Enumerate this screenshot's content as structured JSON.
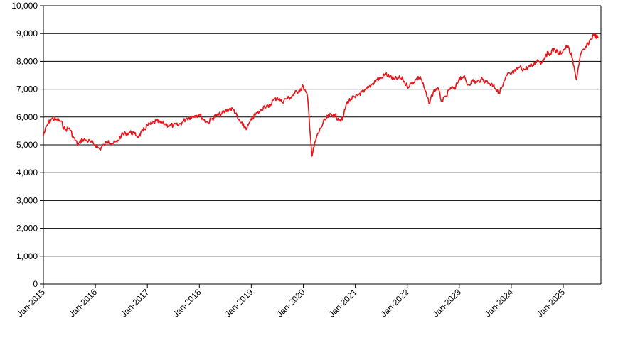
{
  "chart_data": {
    "type": "line",
    "title": "",
    "xlabel": "",
    "ylabel": "",
    "ylim": [
      0,
      10000
    ],
    "xlim": [
      "2015-01",
      "2025-09"
    ],
    "grid": "horizontal",
    "y_ticks": [
      0,
      1000,
      2000,
      3000,
      4000,
      5000,
      6000,
      7000,
      8000,
      9000,
      10000
    ],
    "y_tick_labels": [
      "0",
      "1,000",
      "2,000",
      "3,000",
      "4,000",
      "5,000",
      "6,000",
      "7,000",
      "8,000",
      "9,000",
      "10,000"
    ],
    "x_ticks": [
      "2015-01",
      "2016-01",
      "2017-01",
      "2018-01",
      "2019-01",
      "2020-01",
      "2021-01",
      "2022-01",
      "2023-01",
      "2024-01",
      "2025-01"
    ],
    "x_tick_labels": [
      "Jan-2015",
      "Jan-2016",
      "Jan-2017",
      "Jan-2018",
      "Jan-2019",
      "Jan-2020",
      "Jan-2021",
      "Jan-2022",
      "Jan-2023",
      "Jan-2024",
      "Jan-2025"
    ],
    "series": [
      {
        "color": "#e8161b",
        "points": [
          [
            "2015-01",
            5350
          ],
          [
            "2015-02",
            5750
          ],
          [
            "2015-03",
            5950
          ],
          [
            "2015-04",
            5900
          ],
          [
            "2015-05",
            5850
          ],
          [
            "2015-06",
            5550
          ],
          [
            "2015-07",
            5600
          ],
          [
            "2015-08",
            5250
          ],
          [
            "2015-09",
            5000
          ],
          [
            "2015-10",
            5200
          ],
          [
            "2015-11",
            5150
          ],
          [
            "2015-12",
            5100
          ],
          [
            "2016-01",
            5000
          ],
          [
            "2016-02",
            4850
          ],
          [
            "2016-03",
            5000
          ],
          [
            "2016-04",
            5150
          ],
          [
            "2016-05",
            5050
          ],
          [
            "2016-06",
            5100
          ],
          [
            "2016-07",
            5350
          ],
          [
            "2016-08",
            5400
          ],
          [
            "2016-09",
            5450
          ],
          [
            "2016-10",
            5400
          ],
          [
            "2016-11",
            5300
          ],
          [
            "2016-12",
            5500
          ],
          [
            "2017-01",
            5700
          ],
          [
            "2017-02",
            5750
          ],
          [
            "2017-03",
            5850
          ],
          [
            "2017-04",
            5800
          ],
          [
            "2017-05",
            5750
          ],
          [
            "2017-06",
            5700
          ],
          [
            "2017-07",
            5700
          ],
          [
            "2017-08",
            5700
          ],
          [
            "2017-09",
            5800
          ],
          [
            "2017-10",
            5950
          ],
          [
            "2017-11",
            6000
          ],
          [
            "2017-12",
            6050
          ],
          [
            "2018-01",
            6100
          ],
          [
            "2018-02",
            5900
          ],
          [
            "2018-03",
            5800
          ],
          [
            "2018-04",
            5950
          ],
          [
            "2018-05",
            6050
          ],
          [
            "2018-06",
            6100
          ],
          [
            "2018-07",
            6200
          ],
          [
            "2018-08",
            6300
          ],
          [
            "2018-09",
            6250
          ],
          [
            "2018-10",
            5900
          ],
          [
            "2018-11",
            5700
          ],
          [
            "2018-12",
            5600
          ],
          [
            "2019-01",
            5900
          ],
          [
            "2019-02",
            6100
          ],
          [
            "2019-03",
            6200
          ],
          [
            "2019-04",
            6400
          ],
          [
            "2019-05",
            6350
          ],
          [
            "2019-06",
            6600
          ],
          [
            "2019-07",
            6700
          ],
          [
            "2019-08",
            6550
          ],
          [
            "2019-09",
            6650
          ],
          [
            "2019-10",
            6700
          ],
          [
            "2019-11",
            6850
          ],
          [
            "2019-12",
            6950
          ],
          [
            "2020-01",
            7100
          ],
          [
            "2020-02",
            6700
          ],
          [
            "2020-03",
            4600
          ],
          [
            "2020-04",
            5250
          ],
          [
            "2020-05",
            5600
          ],
          [
            "2020-06",
            5900
          ],
          [
            "2020-07",
            6050
          ],
          [
            "2020-08",
            6100
          ],
          [
            "2020-09",
            5950
          ],
          [
            "2020-10",
            5900
          ],
          [
            "2020-11",
            6500
          ],
          [
            "2020-12",
            6650
          ],
          [
            "2021-01",
            6700
          ],
          [
            "2021-02",
            6850
          ],
          [
            "2021-03",
            6900
          ],
          [
            "2021-04",
            7050
          ],
          [
            "2021-05",
            7200
          ],
          [
            "2021-06",
            7350
          ],
          [
            "2021-07",
            7400
          ],
          [
            "2021-08",
            7550
          ],
          [
            "2021-09",
            7450
          ],
          [
            "2021-10",
            7350
          ],
          [
            "2021-11",
            7400
          ],
          [
            "2021-12",
            7350
          ],
          [
            "2022-01",
            7100
          ],
          [
            "2022-02",
            7200
          ],
          [
            "2022-03",
            7350
          ],
          [
            "2022-04",
            7450
          ],
          [
            "2022-05",
            7000
          ],
          [
            "2022-06",
            6500
          ],
          [
            "2022-07",
            6900
          ],
          [
            "2022-08",
            7050
          ],
          [
            "2022-09",
            6550
          ],
          [
            "2022-10",
            6750
          ],
          [
            "2022-11",
            7050
          ],
          [
            "2022-12",
            7000
          ],
          [
            "2023-01",
            7400
          ],
          [
            "2023-02",
            7450
          ],
          [
            "2023-03",
            7150
          ],
          [
            "2023-04",
            7300
          ],
          [
            "2023-05",
            7250
          ],
          [
            "2023-06",
            7350
          ],
          [
            "2023-07",
            7300
          ],
          [
            "2023-08",
            7200
          ],
          [
            "2023-09",
            7150
          ],
          [
            "2023-10",
            6850
          ],
          [
            "2023-11",
            7100
          ],
          [
            "2023-12",
            7500
          ],
          [
            "2024-01",
            7550
          ],
          [
            "2024-02",
            7650
          ],
          [
            "2024-03",
            7800
          ],
          [
            "2024-04",
            7700
          ],
          [
            "2024-05",
            7800
          ],
          [
            "2024-06",
            7850
          ],
          [
            "2024-07",
            8050
          ],
          [
            "2024-08",
            7950
          ],
          [
            "2024-09",
            8250
          ],
          [
            "2024-10",
            8300
          ],
          [
            "2024-11",
            8450
          ],
          [
            "2024-12",
            8250
          ],
          [
            "2025-01",
            8400
          ],
          [
            "2025-02",
            8550
          ],
          [
            "2025-03",
            8150
          ],
          [
            "2025-04",
            7350
          ],
          [
            "2025-05",
            8250
          ],
          [
            "2025-06",
            8450
          ],
          [
            "2025-07",
            8700
          ],
          [
            "2025-08",
            8950
          ],
          [
            "2025-09",
            8850
          ]
        ]
      }
    ]
  }
}
